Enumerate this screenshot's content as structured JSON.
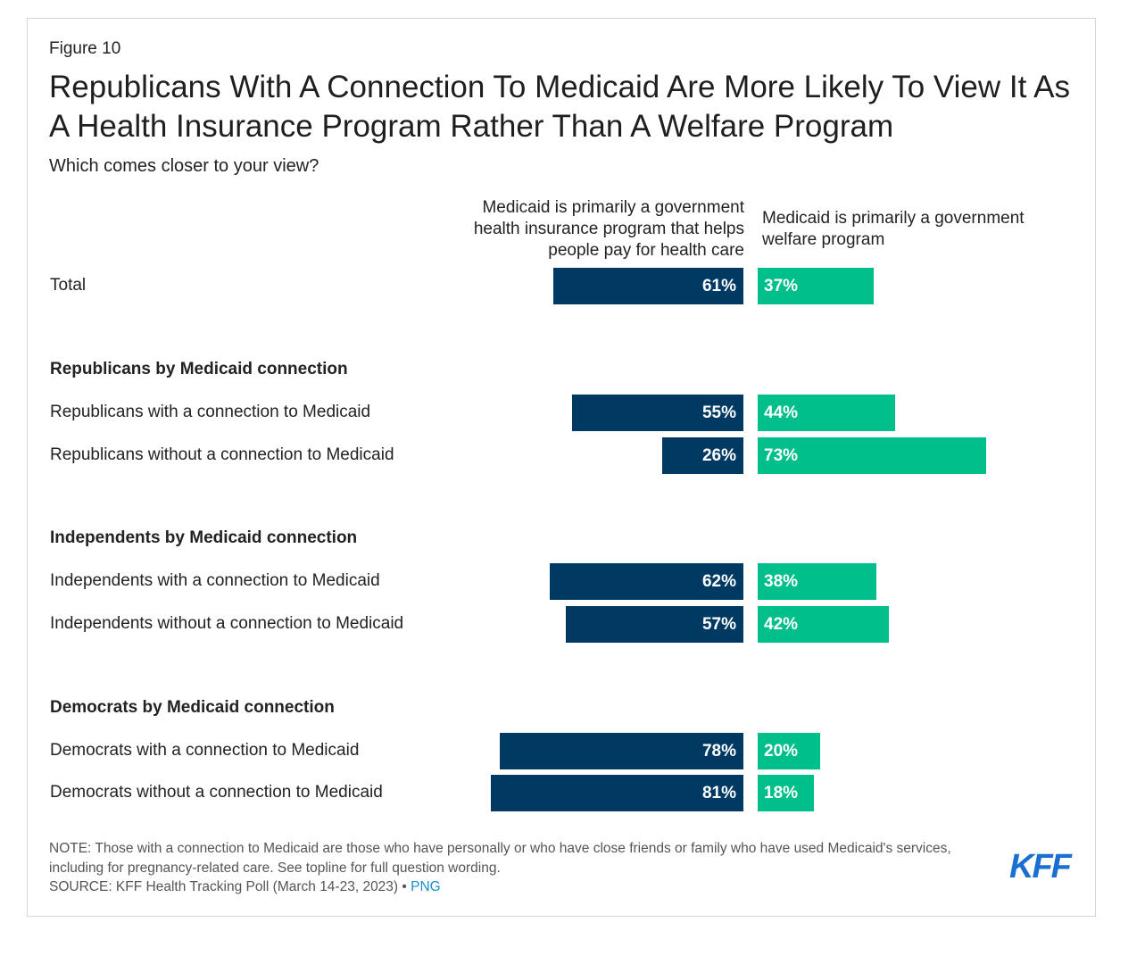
{
  "figure_label": "Figure 10",
  "title": "Republicans With A Connection To Medicaid Are More Likely To View It As A Health Insurance Program Rather Than A Welfare Program",
  "subtitle": "Which comes closer to your view?",
  "note": "NOTE: Those with a connection to Medicaid are those who have personally or who have close friends or family who have used Medicaid's services, including for pregnancy-related care. See topline for full question wording.",
  "source_text": "SOURCE: KFF Health Tracking Poll (March 14-23, 2023) •",
  "source_link": "PNG",
  "logo_text": "KFF",
  "colors": {
    "insurance": "#003a63",
    "welfare": "#00bf8a"
  },
  "chart_data": {
    "type": "bar",
    "orientation": "horizontal-diverging",
    "title": "Republicans With A Connection To Medicaid Are More Likely To View It As A Health Insurance Program Rather Than A Welfare Program",
    "series": [
      {
        "name": "Medicaid is primarily a government health insurance program that helps people pay for health care",
        "values": [
          61,
          55,
          26,
          62,
          57,
          78,
          81
        ]
      },
      {
        "name": "Medicaid is primarily a government welfare program",
        "values": [
          37,
          44,
          73,
          38,
          42,
          20,
          18
        ]
      }
    ],
    "categories": [
      "Total",
      "Republicans with a connection to Medicaid",
      "Republicans without a connection to Medicaid",
      "Independents with a connection to Medicaid",
      "Independents without a connection to Medicaid",
      "Democrats with a connection to Medicaid",
      "Democrats without a connection to Medicaid"
    ],
    "groups": [
      {
        "label": "",
        "rows": [
          0
        ]
      },
      {
        "label": "Republicans by Medicaid connection",
        "rows": [
          1,
          2
        ]
      },
      {
        "label": "Independents by Medicaid connection",
        "rows": [
          3,
          4
        ]
      },
      {
        "label": "Democrats by Medicaid connection",
        "rows": [
          5,
          6
        ]
      }
    ],
    "value_suffix": "%",
    "xlim": [
      0,
      100
    ]
  }
}
